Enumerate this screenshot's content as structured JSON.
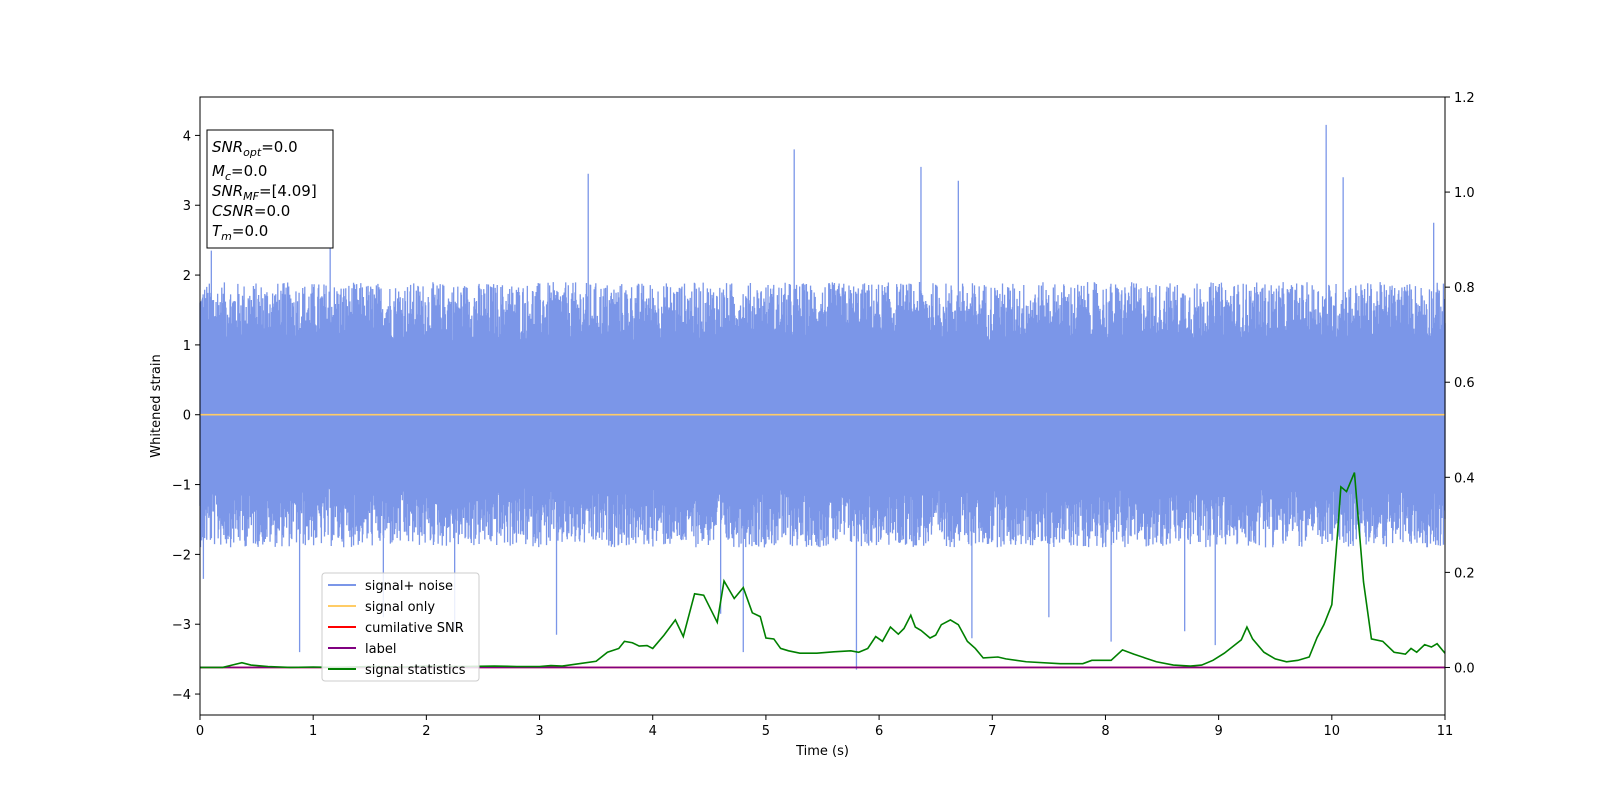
{
  "chart_data": {
    "type": "line",
    "title": "",
    "xlabel": "Time (s)",
    "ylabel": "Whitened strain",
    "xlim": [
      0,
      11
    ],
    "ylim": [
      -4.3,
      4.55
    ],
    "y2lim": [
      -0.1,
      1.2
    ],
    "x_ticks": [
      "0",
      "1",
      "2",
      "3",
      "4",
      "5",
      "6",
      "7",
      "8",
      "9",
      "10",
      "11"
    ],
    "y_ticks": [
      "−4",
      "−3",
      "−2",
      "−1",
      "0",
      "1",
      "2",
      "3",
      "4"
    ],
    "y2_ticks": [
      "0.0",
      "0.2",
      "0.4",
      "0.6",
      "0.8",
      "1.0",
      "1.2"
    ],
    "legend_position": "lower-left",
    "grid": false,
    "annotation_box": {
      "lines": [
        {
          "symbol": "SNR",
          "sub": "opt",
          "value": "=0.0"
        },
        {
          "symbol": "M",
          "sub": "c",
          "value": "=0.0"
        },
        {
          "symbol": "SNR",
          "sub": "MF",
          "value": "=[4.09]"
        },
        {
          "symbol": "CSNR",
          "sub": "",
          "value": "=0.0"
        },
        {
          "symbol": "T",
          "sub": "m",
          "value": "=0.0"
        }
      ]
    },
    "series": [
      {
        "name": "signal+ noise",
        "color": "#7b96e8",
        "axis": "left",
        "style": "noise",
        "envelope_hi": 1.9,
        "envelope_lo": -1.9,
        "spikes": [
          {
            "x": 0.03,
            "y": -2.35
          },
          {
            "x": 0.1,
            "y": 2.35
          },
          {
            "x": 0.88,
            "y": -3.4
          },
          {
            "x": 1.15,
            "y": 2.85
          },
          {
            "x": 1.62,
            "y": -2.9
          },
          {
            "x": 2.25,
            "y": -3.1
          },
          {
            "x": 3.15,
            "y": -3.15
          },
          {
            "x": 3.43,
            "y": 3.45
          },
          {
            "x": 4.6,
            "y": -2.85
          },
          {
            "x": 4.8,
            "y": -3.4
          },
          {
            "x": 5.25,
            "y": 3.8
          },
          {
            "x": 5.8,
            "y": -3.65
          },
          {
            "x": 6.37,
            "y": 3.55
          },
          {
            "x": 6.7,
            "y": 3.35
          },
          {
            "x": 6.82,
            "y": -3.2
          },
          {
            "x": 7.5,
            "y": -2.9
          },
          {
            "x": 8.05,
            "y": -3.25
          },
          {
            "x": 8.7,
            "y": -3.1
          },
          {
            "x": 8.97,
            "y": -3.3
          },
          {
            "x": 9.95,
            "y": 4.15
          },
          {
            "x": 10.1,
            "y": 3.4
          },
          {
            "x": 10.9,
            "y": 2.75
          }
        ]
      },
      {
        "name": "signal only",
        "color": "#ffcc66",
        "axis": "left",
        "x": [
          0,
          11
        ],
        "y": [
          0,
          0
        ]
      },
      {
        "name": "cumilative SNR",
        "color": "#ff0000",
        "axis": "right",
        "x": [
          0,
          11
        ],
        "y": [
          0,
          0
        ]
      },
      {
        "name": "label",
        "color": "#800080",
        "axis": "right",
        "x": [
          0,
          11
        ],
        "y": [
          0,
          0
        ]
      },
      {
        "name": "signal statistics",
        "color": "#008000",
        "axis": "right",
        "x": [
          0,
          0.2,
          0.3,
          0.37,
          0.45,
          0.6,
          0.8,
          1.0,
          1.2,
          1.5,
          1.8,
          2.0,
          2.3,
          2.6,
          2.8,
          3.0,
          3.1,
          3.2,
          3.35,
          3.5,
          3.6,
          3.7,
          3.75,
          3.82,
          3.88,
          3.95,
          4.0,
          4.1,
          4.2,
          4.27,
          4.37,
          4.45,
          4.57,
          4.63,
          4.72,
          4.8,
          4.88,
          4.95,
          5.0,
          5.07,
          5.13,
          5.2,
          5.3,
          5.45,
          5.6,
          5.75,
          5.82,
          5.9,
          5.97,
          6.03,
          6.1,
          6.17,
          6.22,
          6.28,
          6.32,
          6.37,
          6.45,
          6.5,
          6.55,
          6.63,
          6.7,
          6.78,
          6.85,
          6.92,
          7.05,
          7.12,
          7.3,
          7.6,
          7.8,
          7.88,
          7.93,
          8.05,
          8.15,
          8.25,
          8.35,
          8.45,
          8.6,
          8.75,
          8.85,
          8.95,
          9.05,
          9.2,
          9.25,
          9.3,
          9.4,
          9.5,
          9.6,
          9.7,
          9.8,
          9.87,
          9.93,
          10.0,
          10.05,
          10.08,
          10.13,
          10.2,
          10.28,
          10.35,
          10.45,
          10.55,
          10.65,
          10.7,
          10.75,
          10.82,
          10.88,
          10.93,
          11.0
        ],
        "y": [
          0.0,
          0.0,
          0.006,
          0.01,
          0.005,
          0.002,
          0.0,
          0.001,
          0.0,
          0.002,
          0.001,
          0.003,
          0.002,
          0.003,
          0.002,
          0.002,
          0.004,
          0.003,
          0.008,
          0.013,
          0.032,
          0.04,
          0.055,
          0.052,
          0.045,
          0.046,
          0.04,
          0.068,
          0.1,
          0.065,
          0.155,
          0.152,
          0.095,
          0.182,
          0.145,
          0.168,
          0.115,
          0.107,
          0.062,
          0.06,
          0.04,
          0.035,
          0.03,
          0.03,
          0.033,
          0.035,
          0.032,
          0.04,
          0.065,
          0.055,
          0.085,
          0.07,
          0.082,
          0.11,
          0.085,
          0.078,
          0.062,
          0.068,
          0.09,
          0.1,
          0.09,
          0.055,
          0.04,
          0.02,
          0.022,
          0.018,
          0.012,
          0.008,
          0.008,
          0.015,
          0.015,
          0.015,
          0.037,
          0.028,
          0.02,
          0.012,
          0.005,
          0.003,
          0.005,
          0.015,
          0.03,
          0.058,
          0.085,
          0.06,
          0.032,
          0.018,
          0.012,
          0.015,
          0.022,
          0.063,
          0.09,
          0.132,
          0.28,
          0.38,
          0.37,
          0.41,
          0.18,
          0.06,
          0.055,
          0.032,
          0.028,
          0.04,
          0.032,
          0.048,
          0.043,
          0.05,
          0.03
        ]
      }
    ]
  }
}
